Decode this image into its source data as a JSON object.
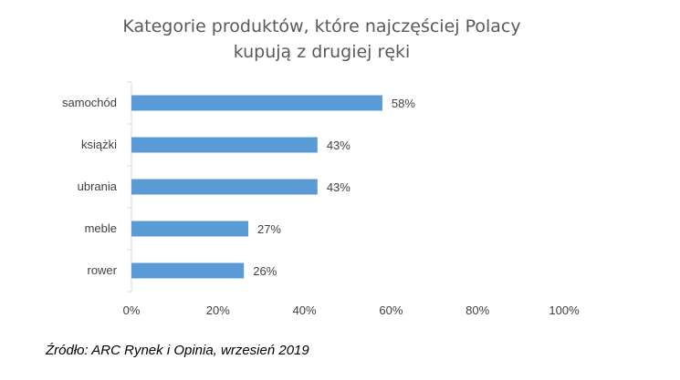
{
  "chart_data": {
    "type": "bar",
    "orientation": "horizontal",
    "title_lines": [
      "Kategorie produktów, które najczęściej Polacy",
      "kupują z drugiej ręki"
    ],
    "categories": [
      "samochód",
      "książki",
      "ubrania",
      "meble",
      "rower"
    ],
    "values": [
      58,
      43,
      43,
      27,
      26
    ],
    "value_labels": [
      "58%",
      "43%",
      "43%",
      "27%",
      "26%"
    ],
    "x_ticks": [
      0,
      20,
      40,
      60,
      80,
      100
    ],
    "x_tick_labels": [
      "0%",
      "20%",
      "40%",
      "60%",
      "80%",
      "100%"
    ],
    "xlim": [
      0,
      100
    ],
    "grid": false,
    "legend": "none",
    "bar_color": "#5b9bd5"
  },
  "source": "Źródło: ARC Rynek i Opinia, wrzesień 2019"
}
